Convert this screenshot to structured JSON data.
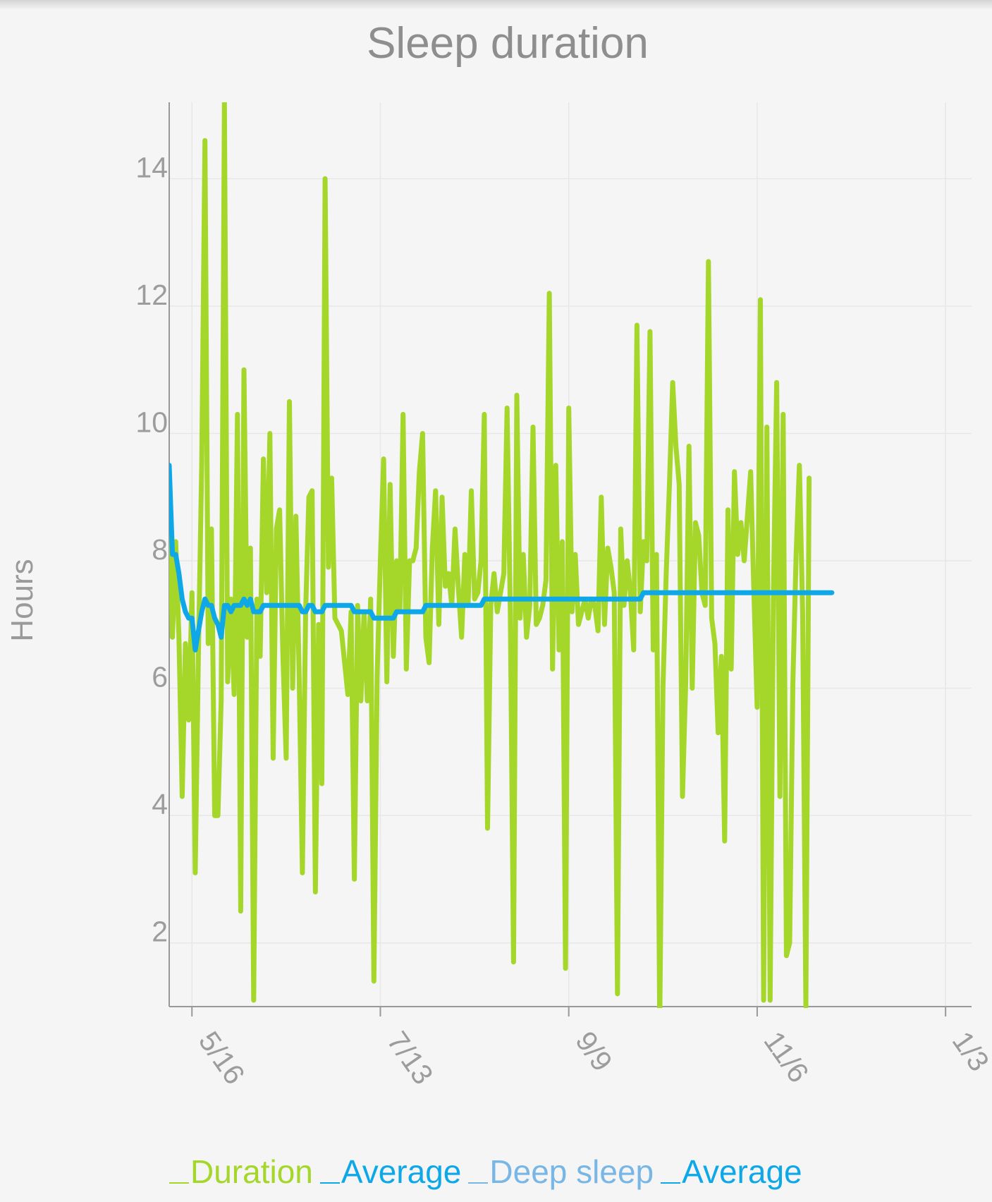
{
  "colors": {
    "duration": "#a5d62a",
    "average": "#0ea8e8",
    "deep_sleep": "#78b6e6",
    "deep_average": "#0ea8e8"
  },
  "chart_data": {
    "type": "line",
    "title": "Sleep duration",
    "ylabel": "Hours",
    "xlabel": "",
    "ylim": [
      1,
      15.2
    ],
    "yticks": [
      2,
      4,
      6,
      8,
      10,
      12,
      14
    ],
    "xlim": [
      "2017-05-09",
      "2018-01-11"
    ],
    "xticks": [
      {
        "date": "2017-05-16",
        "label": "5/16"
      },
      {
        "date": "2017-07-13",
        "label": "7/13"
      },
      {
        "date": "2017-09-09",
        "label": "9/9"
      },
      {
        "date": "2017-11-06",
        "label": "11/6"
      },
      {
        "date": "2018-01-03",
        "label": "1/3"
      }
    ],
    "grid": true,
    "legend_position": "bottom",
    "legend": [
      "Duration",
      "Average",
      "Deep sleep",
      "Average"
    ],
    "series": [
      {
        "name": "Duration",
        "start_date": "2017-05-09",
        "step_days": 1,
        "values": [
          9.0,
          6.8,
          8.3,
          6.8,
          4.3,
          6.7,
          5.5,
          7.5,
          3.1,
          6.6,
          9.5,
          14.6,
          6.7,
          8.5,
          4.0,
          4.0,
          5.8,
          15.2,
          6.1,
          7.4,
          5.9,
          10.3,
          2.5,
          11.0,
          6.8,
          8.2,
          1.1,
          7.4,
          6.5,
          9.6,
          7.5,
          10.0,
          4.9,
          8.5,
          8.8,
          6.5,
          4.9,
          10.5,
          6.0,
          8.7,
          6.2,
          3.1,
          7.2,
          9.0,
          9.1,
          2.8,
          7.0,
          4.5,
          14.0,
          7.9,
          9.3,
          7.1,
          7.0,
          6.9,
          6.4,
          5.9,
          7.2,
          3.0,
          7.3,
          5.8,
          7.2,
          5.8,
          7.4,
          1.4,
          6.2,
          8.0,
          9.6,
          6.1,
          9.2,
          6.5,
          8.0,
          7.2,
          10.3,
          6.3,
          8.0,
          8.0,
          8.2,
          9.4,
          10.0,
          6.8,
          6.4,
          8.2,
          9.1,
          7.0,
          9.0,
          7.6,
          7.8,
          7.3,
          8.5,
          7.6,
          6.8,
          8.1,
          7.3,
          9.1,
          7.4,
          7.5,
          8.0,
          10.3,
          3.8,
          7.3,
          7.8,
          7.2,
          7.5,
          7.8,
          10.4,
          7.2,
          1.7,
          10.6,
          7.1,
          8.1,
          6.8,
          7.3,
          10.1,
          7.0,
          7.1,
          7.3,
          7.7,
          12.2,
          6.3,
          9.5,
          6.6,
          8.3,
          1.6,
          10.4,
          7.2,
          8.1,
          7.0,
          7.2,
          7.4,
          7.1,
          7.4,
          7.3,
          6.9,
          9.0,
          7.0,
          8.2,
          7.9,
          7.5,
          1.2,
          8.5,
          7.3,
          8.0,
          7.5,
          6.6,
          11.7,
          7.2,
          8.3,
          8.0,
          11.6,
          6.6,
          8.1,
          0.7,
          6.0,
          7.8,
          9.2,
          10.8,
          9.8,
          9.2,
          4.3,
          6.1,
          9.8,
          6.0,
          8.6,
          8.4,
          7.5,
          7.3,
          12.7,
          7.1,
          6.7,
          5.3,
          6.5,
          3.6,
          8.8,
          6.3,
          9.4,
          8.1,
          8.6,
          8.0,
          8.7,
          9.4,
          7.5,
          5.7,
          12.1,
          1.1,
          10.1,
          1.1,
          7.5,
          10.8,
          4.3,
          10.3,
          1.8,
          2.0,
          6.1,
          8.1,
          9.5,
          7.2,
          1.0,
          9.3
        ]
      },
      {
        "name": "Average",
        "start_date": "2017-05-09",
        "step_days": 1,
        "values": [
          9.5,
          8.1,
          8.1,
          7.8,
          7.4,
          7.2,
          7.1,
          7.1,
          6.6,
          6.9,
          7.2,
          7.4,
          7.3,
          7.3,
          7.1,
          7.0,
          6.8,
          7.3,
          7.3,
          7.2,
          7.3,
          7.3,
          7.3,
          7.4,
          7.3,
          7.4,
          7.2,
          7.2,
          7.2,
          7.3,
          7.3,
          7.3,
          7.3,
          7.3,
          7.3,
          7.3,
          7.3,
          7.3,
          7.3,
          7.3,
          7.3,
          7.2,
          7.2,
          7.3,
          7.3,
          7.2,
          7.2,
          7.2,
          7.3,
          7.3,
          7.3,
          7.3,
          7.3,
          7.3,
          7.3,
          7.3,
          7.3,
          7.2,
          7.2,
          7.2,
          7.2,
          7.2,
          7.2,
          7.1,
          7.1,
          7.1,
          7.1,
          7.1,
          7.1,
          7.1,
          7.2,
          7.2,
          7.2,
          7.2,
          7.2,
          7.2,
          7.2,
          7.2,
          7.2,
          7.3,
          7.3,
          7.3,
          7.3,
          7.3,
          7.3,
          7.3,
          7.3,
          7.3,
          7.3,
          7.3,
          7.3,
          7.3,
          7.3,
          7.3,
          7.3,
          7.3,
          7.3,
          7.4,
          7.4,
          7.4,
          7.4,
          7.4,
          7.4,
          7.4,
          7.4,
          7.4,
          7.4,
          7.4,
          7.4,
          7.4,
          7.4,
          7.4,
          7.4,
          7.4,
          7.4,
          7.4,
          7.4,
          7.4,
          7.4,
          7.4,
          7.4,
          7.4,
          7.4,
          7.4,
          7.4,
          7.4,
          7.4,
          7.4,
          7.4,
          7.4,
          7.4,
          7.4,
          7.4,
          7.4,
          7.4,
          7.4,
          7.4,
          7.4,
          7.4,
          7.4,
          7.4,
          7.4,
          7.4,
          7.4,
          7.4,
          7.4,
          7.5,
          7.5,
          7.5,
          7.5,
          7.5,
          7.5,
          7.5,
          7.5,
          7.5,
          7.5,
          7.5,
          7.5,
          7.5,
          7.5,
          7.5,
          7.5,
          7.5,
          7.5,
          7.5,
          7.5,
          7.5,
          7.5,
          7.5,
          7.5,
          7.5,
          7.5,
          7.5,
          7.5,
          7.5,
          7.5,
          7.5,
          7.5,
          7.5,
          7.5,
          7.5,
          7.5,
          7.5,
          7.5,
          7.5,
          7.5,
          7.5,
          7.5,
          7.5,
          7.5,
          7.5,
          7.5,
          7.5,
          7.5,
          7.5,
          7.5,
          7.5,
          7.5,
          7.5,
          7.5,
          7.5,
          7.5,
          7.5,
          7.5,
          7.5
        ]
      }
    ]
  }
}
